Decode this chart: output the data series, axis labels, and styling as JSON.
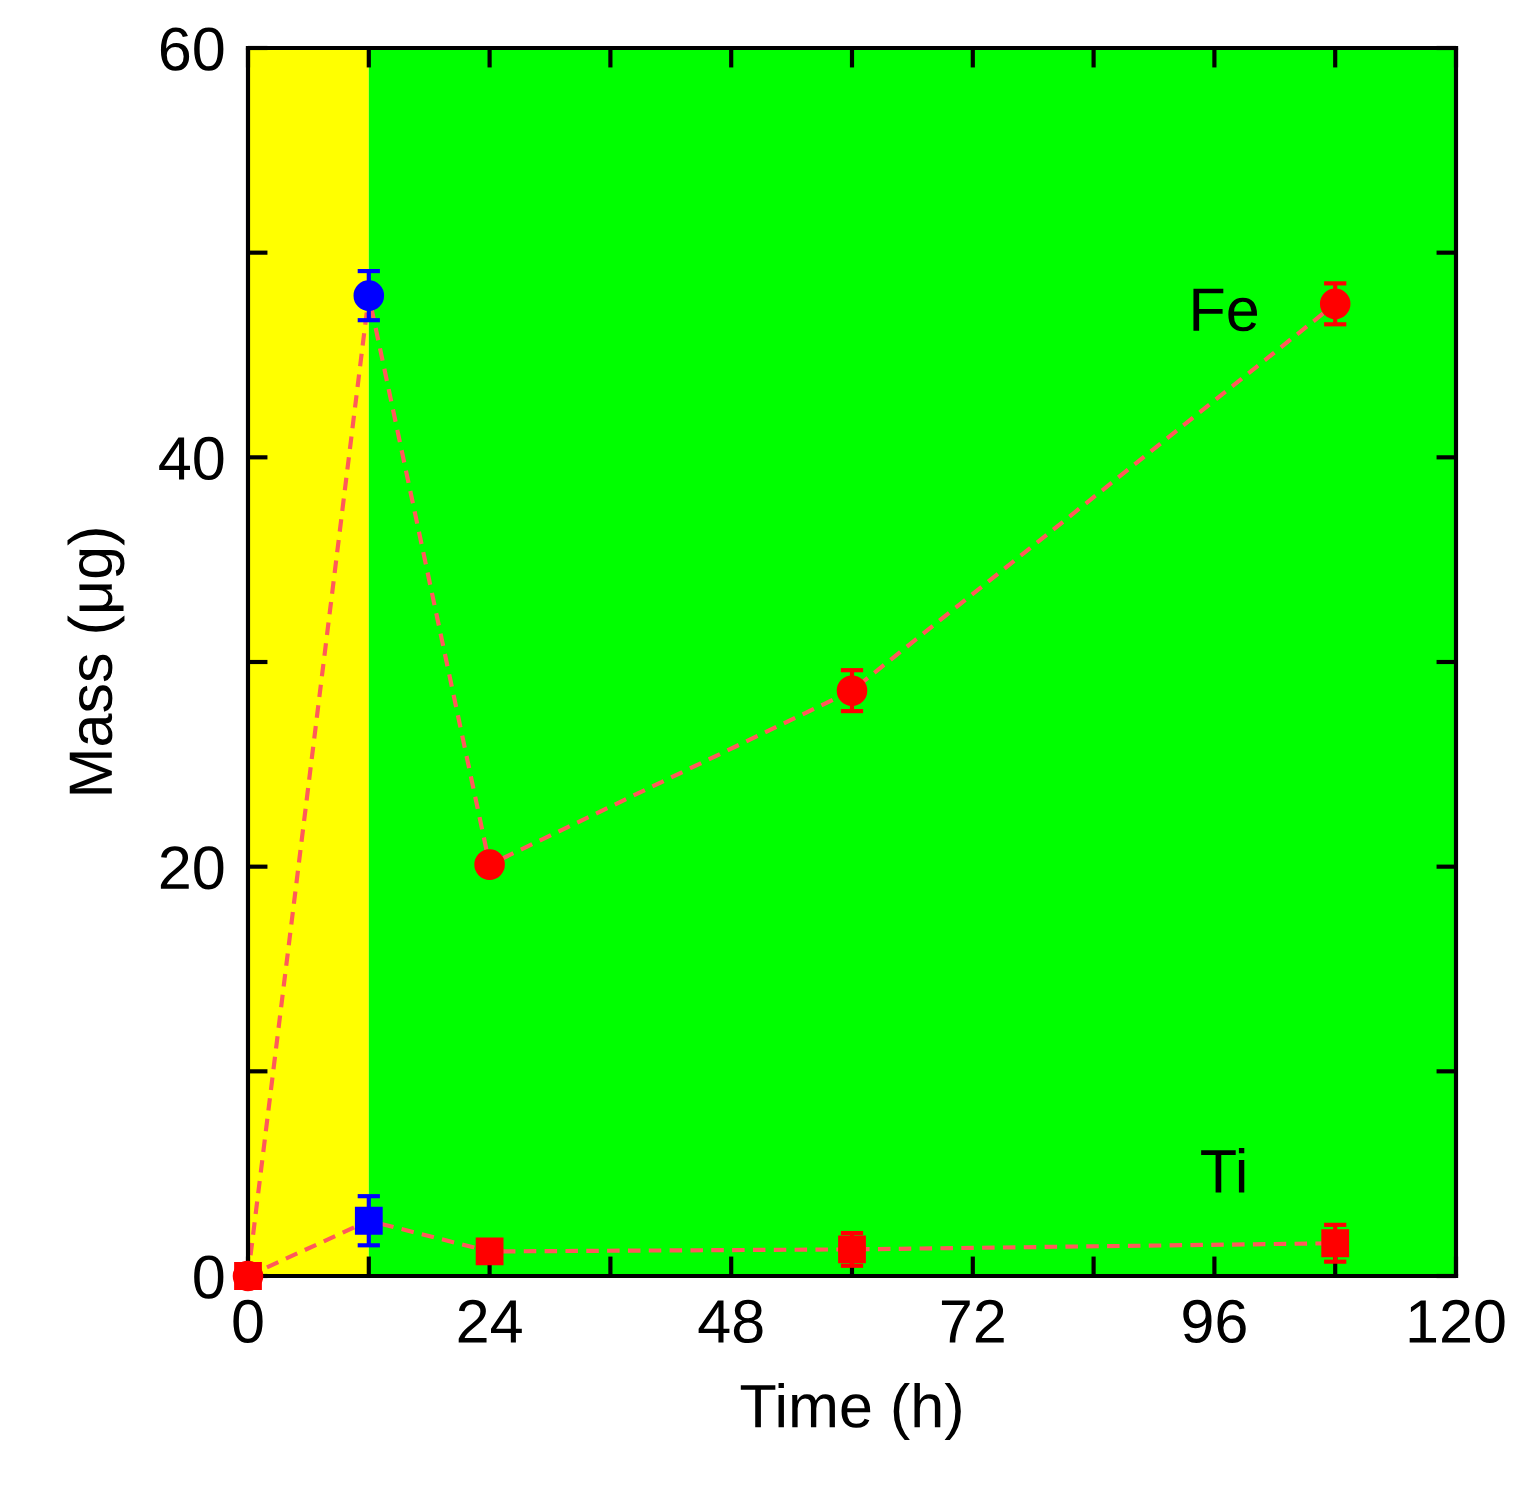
{
  "chart_data": {
    "type": "line",
    "xlabel": "Time (h)",
    "ylabel": "Mass (μg)",
    "xlim": [
      0,
      120
    ],
    "ylim": [
      0,
      60
    ],
    "xticks": [
      0,
      {
        "value": 12,
        "label": null
      },
      24,
      {
        "value": 36,
        "label": null
      },
      48,
      {
        "value": 60,
        "label": null
      },
      72,
      {
        "value": 84,
        "label": null
      },
      96,
      {
        "value": 108,
        "label": null
      },
      120
    ],
    "yticks": [
      0,
      {
        "value": 10,
        "label": null
      },
      20,
      {
        "value": 30,
        "label": null
      },
      40,
      {
        "value": 50,
        "label": null
      },
      60
    ],
    "line_style": "dashed",
    "grid": false,
    "legend": false,
    "bands": [
      {
        "axis": "x",
        "from": 0,
        "to": 12,
        "color": "#ffff00"
      },
      {
        "axis": "x",
        "from": 12,
        "to": 120,
        "color": "#00ff00"
      }
    ],
    "series": [
      {
        "name": "Fe",
        "marker": "circle",
        "color": "#ff5a5a",
        "x": [
          0,
          12,
          24,
          60,
          108
        ],
        "values": [
          0,
          47.9,
          20.1,
          28.6,
          47.5
        ],
        "errors": [
          null,
          1.2,
          0.4,
          1.0,
          1.0
        ],
        "colors": [
          "#ff0000",
          "#0000ff",
          "#ff0000",
          "#ff0000",
          "#ff0000"
        ]
      },
      {
        "name": "Ti",
        "marker": "square",
        "color": "#ff5a5a",
        "x": [
          0,
          12,
          24,
          60,
          108
        ],
        "values": [
          0,
          2.7,
          1.2,
          1.3,
          1.6
        ],
        "errors": [
          null,
          1.2,
          0.3,
          0.8,
          0.9
        ],
        "colors": [
          "#ff0000",
          "#0000ff",
          "#ff0000",
          "#ff0000",
          "#ff0000"
        ]
      }
    ]
  }
}
